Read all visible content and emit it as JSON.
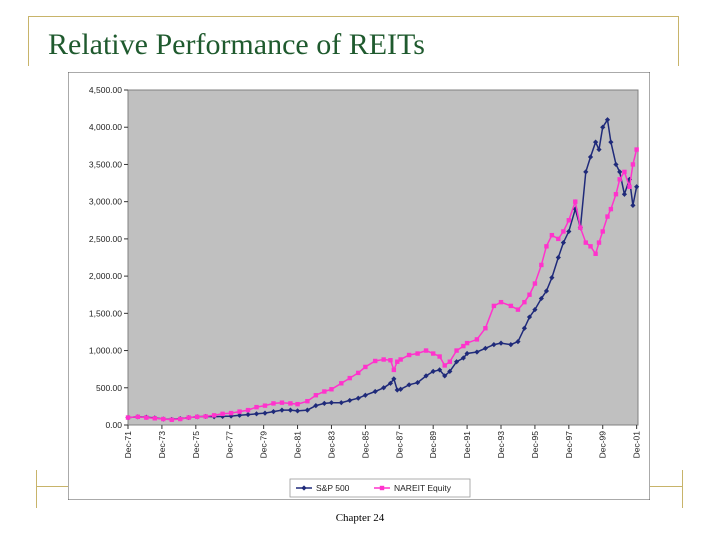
{
  "slide": {
    "title": "Relative Performance of REITs",
    "footer": "Chapter 24"
  },
  "chart_data": {
    "type": "line",
    "title": "",
    "xlabel": "",
    "ylabel": "",
    "ylim": [
      0,
      4500
    ],
    "yticks": [
      0,
      500,
      1000,
      1500,
      2000,
      2500,
      3000,
      3500,
      4000,
      4500
    ],
    "ytick_labels": [
      "0.00",
      "500.00",
      "1,000.00",
      "1,500.00",
      "2,000.00",
      "2,500.00",
      "3,000.00",
      "3,500.00",
      "4,000.00",
      "4,500.00"
    ],
    "xlim": [
      1971.92,
      2002.0
    ],
    "xtick_labels": [
      "Dec-71",
      "Dec-73",
      "Dec-75",
      "Dec-77",
      "Dec-79",
      "Dec-81",
      "Dec-83",
      "Dec-85",
      "Dec-87",
      "Dec-89",
      "Dec-91",
      "Dec-93",
      "Dec-95",
      "Dec-97",
      "Dec-99",
      "Dec-01"
    ],
    "xtick_values": [
      1971.92,
      1973.92,
      1975.92,
      1977.92,
      1979.92,
      1981.92,
      1983.92,
      1985.92,
      1987.92,
      1989.92,
      1991.92,
      1993.92,
      1995.92,
      1997.92,
      1999.92,
      2001.92
    ],
    "grid": false,
    "plot_background": "#c0c0c0",
    "legend_position": "bottom",
    "series": [
      {
        "name": "S&P 500",
        "color": "#1f2a7a",
        "marker": "diamond",
        "points": [
          [
            1971.92,
            100
          ],
          [
            1972.5,
            110
          ],
          [
            1973.0,
            105
          ],
          [
            1973.5,
            95
          ],
          [
            1974.0,
            80
          ],
          [
            1974.5,
            75
          ],
          [
            1975.0,
            85
          ],
          [
            1975.5,
            100
          ],
          [
            1976.0,
            110
          ],
          [
            1976.5,
            115
          ],
          [
            1977.0,
            110
          ],
          [
            1977.5,
            115
          ],
          [
            1978.0,
            120
          ],
          [
            1978.5,
            130
          ],
          [
            1979.0,
            140
          ],
          [
            1979.5,
            150
          ],
          [
            1980.0,
            160
          ],
          [
            1980.5,
            180
          ],
          [
            1981.0,
            200
          ],
          [
            1981.5,
            200
          ],
          [
            1981.92,
            190
          ],
          [
            1982.5,
            200
          ],
          [
            1983.0,
            260
          ],
          [
            1983.5,
            290
          ],
          [
            1983.92,
            300
          ],
          [
            1984.5,
            300
          ],
          [
            1985.0,
            330
          ],
          [
            1985.5,
            360
          ],
          [
            1985.92,
            400
          ],
          [
            1986.5,
            450
          ],
          [
            1987.0,
            500
          ],
          [
            1987.4,
            560
          ],
          [
            1987.6,
            620
          ],
          [
            1987.8,
            470
          ],
          [
            1988.0,
            480
          ],
          [
            1988.5,
            540
          ],
          [
            1989.0,
            570
          ],
          [
            1989.5,
            660
          ],
          [
            1989.92,
            720
          ],
          [
            1990.3,
            740
          ],
          [
            1990.6,
            660
          ],
          [
            1990.9,
            720
          ],
          [
            1991.3,
            850
          ],
          [
            1991.7,
            900
          ],
          [
            1991.92,
            960
          ],
          [
            1992.5,
            980
          ],
          [
            1993.0,
            1030
          ],
          [
            1993.5,
            1080
          ],
          [
            1993.92,
            1100
          ],
          [
            1994.5,
            1080
          ],
          [
            1994.92,
            1120
          ],
          [
            1995.3,
            1300
          ],
          [
            1995.6,
            1450
          ],
          [
            1995.92,
            1550
          ],
          [
            1996.3,
            1700
          ],
          [
            1996.6,
            1800
          ],
          [
            1996.92,
            1980
          ],
          [
            1997.3,
            2250
          ],
          [
            1997.6,
            2450
          ],
          [
            1997.92,
            2600
          ],
          [
            1998.3,
            2900
          ],
          [
            1998.6,
            2650
          ],
          [
            1998.92,
            3400
          ],
          [
            1999.2,
            3600
          ],
          [
            1999.5,
            3800
          ],
          [
            1999.7,
            3700
          ],
          [
            1999.92,
            4000
          ],
          [
            2000.2,
            4100
          ],
          [
            2000.4,
            3800
          ],
          [
            2000.7,
            3500
          ],
          [
            2000.92,
            3400
          ],
          [
            2001.2,
            3100
          ],
          [
            2001.5,
            3300
          ],
          [
            2001.7,
            2950
          ],
          [
            2001.92,
            3200
          ]
        ]
      },
      {
        "name": "NAREIT Equity",
        "color": "#ff33cc",
        "marker": "square",
        "points": [
          [
            1971.92,
            100
          ],
          [
            1972.5,
            110
          ],
          [
            1973.0,
            100
          ],
          [
            1973.5,
            90
          ],
          [
            1974.0,
            80
          ],
          [
            1974.5,
            70
          ],
          [
            1975.0,
            80
          ],
          [
            1975.5,
            100
          ],
          [
            1976.0,
            110
          ],
          [
            1976.5,
            115
          ],
          [
            1977.0,
            130
          ],
          [
            1977.5,
            150
          ],
          [
            1978.0,
            160
          ],
          [
            1978.5,
            180
          ],
          [
            1979.0,
            200
          ],
          [
            1979.5,
            240
          ],
          [
            1980.0,
            260
          ],
          [
            1980.5,
            290
          ],
          [
            1981.0,
            300
          ],
          [
            1981.5,
            290
          ],
          [
            1981.92,
            280
          ],
          [
            1982.5,
            320
          ],
          [
            1983.0,
            400
          ],
          [
            1983.5,
            450
          ],
          [
            1983.92,
            480
          ],
          [
            1984.5,
            560
          ],
          [
            1985.0,
            630
          ],
          [
            1985.5,
            700
          ],
          [
            1985.92,
            780
          ],
          [
            1986.5,
            860
          ],
          [
            1987.0,
            880
          ],
          [
            1987.4,
            870
          ],
          [
            1987.6,
            740
          ],
          [
            1987.8,
            850
          ],
          [
            1988.0,
            880
          ],
          [
            1988.5,
            940
          ],
          [
            1989.0,
            960
          ],
          [
            1989.5,
            1000
          ],
          [
            1989.92,
            960
          ],
          [
            1990.3,
            920
          ],
          [
            1990.6,
            800
          ],
          [
            1990.9,
            850
          ],
          [
            1991.3,
            1000
          ],
          [
            1991.7,
            1060
          ],
          [
            1991.92,
            1100
          ],
          [
            1992.5,
            1150
          ],
          [
            1993.0,
            1300
          ],
          [
            1993.5,
            1600
          ],
          [
            1993.92,
            1650
          ],
          [
            1994.5,
            1600
          ],
          [
            1994.92,
            1550
          ],
          [
            1995.3,
            1650
          ],
          [
            1995.6,
            1750
          ],
          [
            1995.92,
            1900
          ],
          [
            1996.3,
            2150
          ],
          [
            1996.6,
            2400
          ],
          [
            1996.92,
            2550
          ],
          [
            1997.3,
            2500
          ],
          [
            1997.6,
            2600
          ],
          [
            1997.92,
            2750
          ],
          [
            1998.3,
            3000
          ],
          [
            1998.6,
            2650
          ],
          [
            1998.92,
            2450
          ],
          [
            1999.2,
            2400
          ],
          [
            1999.5,
            2300
          ],
          [
            1999.7,
            2450
          ],
          [
            1999.92,
            2600
          ],
          [
            2000.2,
            2800
          ],
          [
            2000.4,
            2900
          ],
          [
            2000.7,
            3100
          ],
          [
            2000.92,
            3300
          ],
          [
            2001.2,
            3400
          ],
          [
            2001.5,
            3200
          ],
          [
            2001.7,
            3500
          ],
          [
            2001.92,
            3700
          ]
        ]
      }
    ]
  }
}
